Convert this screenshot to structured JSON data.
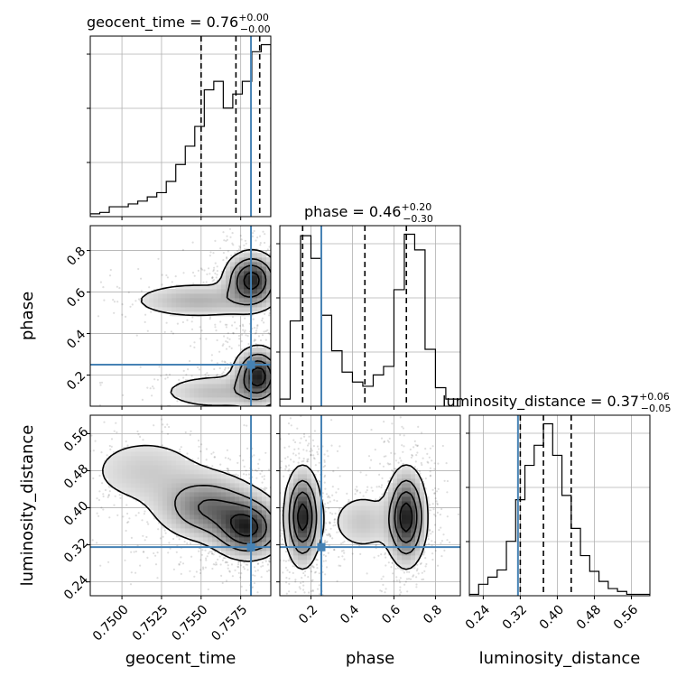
{
  "chart_data": {
    "type": "corner",
    "parameters": [
      "geocent_time",
      "phase",
      "luminosity_distance"
    ],
    "truth": {
      "geocent_time": 0.75815,
      "phase": 0.25,
      "luminosity_distance": 0.315
    },
    "titles": {
      "geocent_time": {
        "name": "geocent_time",
        "median": "0.76",
        "plus": "+0.00",
        "minus": "−0.00"
      },
      "phase": {
        "name": "phase",
        "median": "0.46",
        "plus": "+0.20",
        "minus": "−0.30"
      },
      "luminosity_distance": {
        "name": "luminosity_distance",
        "median": "0.37",
        "plus": "+0.06",
        "minus": "−0.05"
      }
    },
    "axes": {
      "geocent_time": {
        "label": "geocent_time",
        "range": [
          0.748,
          0.7594
        ],
        "ticks": [
          0.75,
          0.7525,
          0.755,
          0.7575
        ],
        "tick_labels": [
          "0.7500",
          "0.7525",
          "0.7550",
          "0.7575"
        ]
      },
      "phase": {
        "label": "phase",
        "range": [
          0.05,
          0.92
        ],
        "ticks": [
          0.2,
          0.4,
          0.6,
          0.8
        ],
        "tick_labels": [
          "0.2",
          "0.4",
          "0.6",
          "0.8"
        ]
      },
      "luminosity_distance": {
        "label": "luminosity_distance",
        "range": [
          0.21,
          0.6
        ],
        "ticks": [
          0.24,
          0.32,
          0.4,
          0.48,
          0.56
        ],
        "tick_labels": [
          "0.24",
          "0.32",
          "0.40",
          "0.48",
          "0.56"
        ]
      }
    },
    "marginals": {
      "geocent_time": {
        "edges": [
          0.748,
          0.7486,
          0.7492,
          0.7498,
          0.7504,
          0.751,
          0.7516,
          0.7522,
          0.7528,
          0.7534,
          0.754,
          0.7546,
          0.7552,
          0.7558,
          0.7564,
          0.757,
          0.7576,
          0.7582,
          0.7588,
          0.7594
        ],
        "counts": [
          2,
          3,
          7,
          7,
          9,
          11,
          14,
          17,
          25,
          37,
          50,
          64,
          90,
          96,
          77,
          87,
          96,
          117,
          122
        ],
        "quantiles": [
          0.755,
          0.7572,
          0.7587
        ]
      },
      "phase": {
        "edges": [
          0.05,
          0.1,
          0.15,
          0.2,
          0.25,
          0.3,
          0.35,
          0.4,
          0.45,
          0.5,
          0.55,
          0.6,
          0.65,
          0.7,
          0.75,
          0.8,
          0.85,
          0.92
        ],
        "counts": [
          5,
          60,
          120,
          104,
          64,
          39,
          24,
          17,
          14,
          22,
          28,
          82,
          121,
          110,
          40,
          13,
          5
        ],
        "quantiles": [
          0.16,
          0.46,
          0.66
        ]
      },
      "luminosity_distance": {
        "edges": [
          0.21,
          0.23,
          0.25,
          0.27,
          0.29,
          0.31,
          0.33,
          0.35,
          0.37,
          0.39,
          0.41,
          0.43,
          0.45,
          0.47,
          0.49,
          0.51,
          0.53,
          0.55,
          0.57,
          0.6
        ],
        "counts": [
          1,
          8,
          13,
          18,
          38,
          67,
          91,
          105,
          120,
          98,
          70,
          47,
          28,
          17,
          10,
          5,
          3,
          1,
          1
        ],
        "quantiles": [
          0.32,
          0.37,
          0.43
        ]
      }
    },
    "pairs": [
      {
        "x": "geocent_time",
        "y": "phase",
        "modes": [
          {
            "cx": 0.7582,
            "cy": 0.66,
            "sx": 0.0009,
            "sy": 0.07,
            "w": 1.0
          },
          {
            "cx": 0.7586,
            "cy": 0.2,
            "sx": 0.0008,
            "sy": 0.07,
            "w": 1.0
          },
          {
            "cx": 0.7548,
            "cy": 0.56,
            "sx": 0.0025,
            "sy": 0.05,
            "w": 0.35
          },
          {
            "cx": 0.756,
            "cy": 0.12,
            "sx": 0.0022,
            "sy": 0.05,
            "w": 0.3
          }
        ]
      },
      {
        "x": "geocent_time",
        "y": "luminosity_distance",
        "modes": [
          {
            "cx": 0.758,
            "cy": 0.355,
            "sx": 0.0012,
            "sy": 0.035,
            "w": 1.0
          },
          {
            "cx": 0.7555,
            "cy": 0.4,
            "sx": 0.0018,
            "sy": 0.04,
            "w": 0.7
          },
          {
            "cx": 0.7515,
            "cy": 0.48,
            "sx": 0.0025,
            "sy": 0.05,
            "w": 0.25
          }
        ]
      },
      {
        "x": "phase",
        "y": "luminosity_distance",
        "modes": [
          {
            "cx": 0.16,
            "cy": 0.38,
            "sx": 0.045,
            "sy": 0.055,
            "w": 1.0
          },
          {
            "cx": 0.66,
            "cy": 0.38,
            "sx": 0.05,
            "sy": 0.055,
            "w": 1.0
          },
          {
            "cx": 0.45,
            "cy": 0.37,
            "sx": 0.1,
            "sy": 0.04,
            "w": 0.25
          }
        ]
      }
    ],
    "colors": {
      "truth": "#4682b4",
      "grid": "#b0b0b0",
      "line": "#000000"
    }
  }
}
